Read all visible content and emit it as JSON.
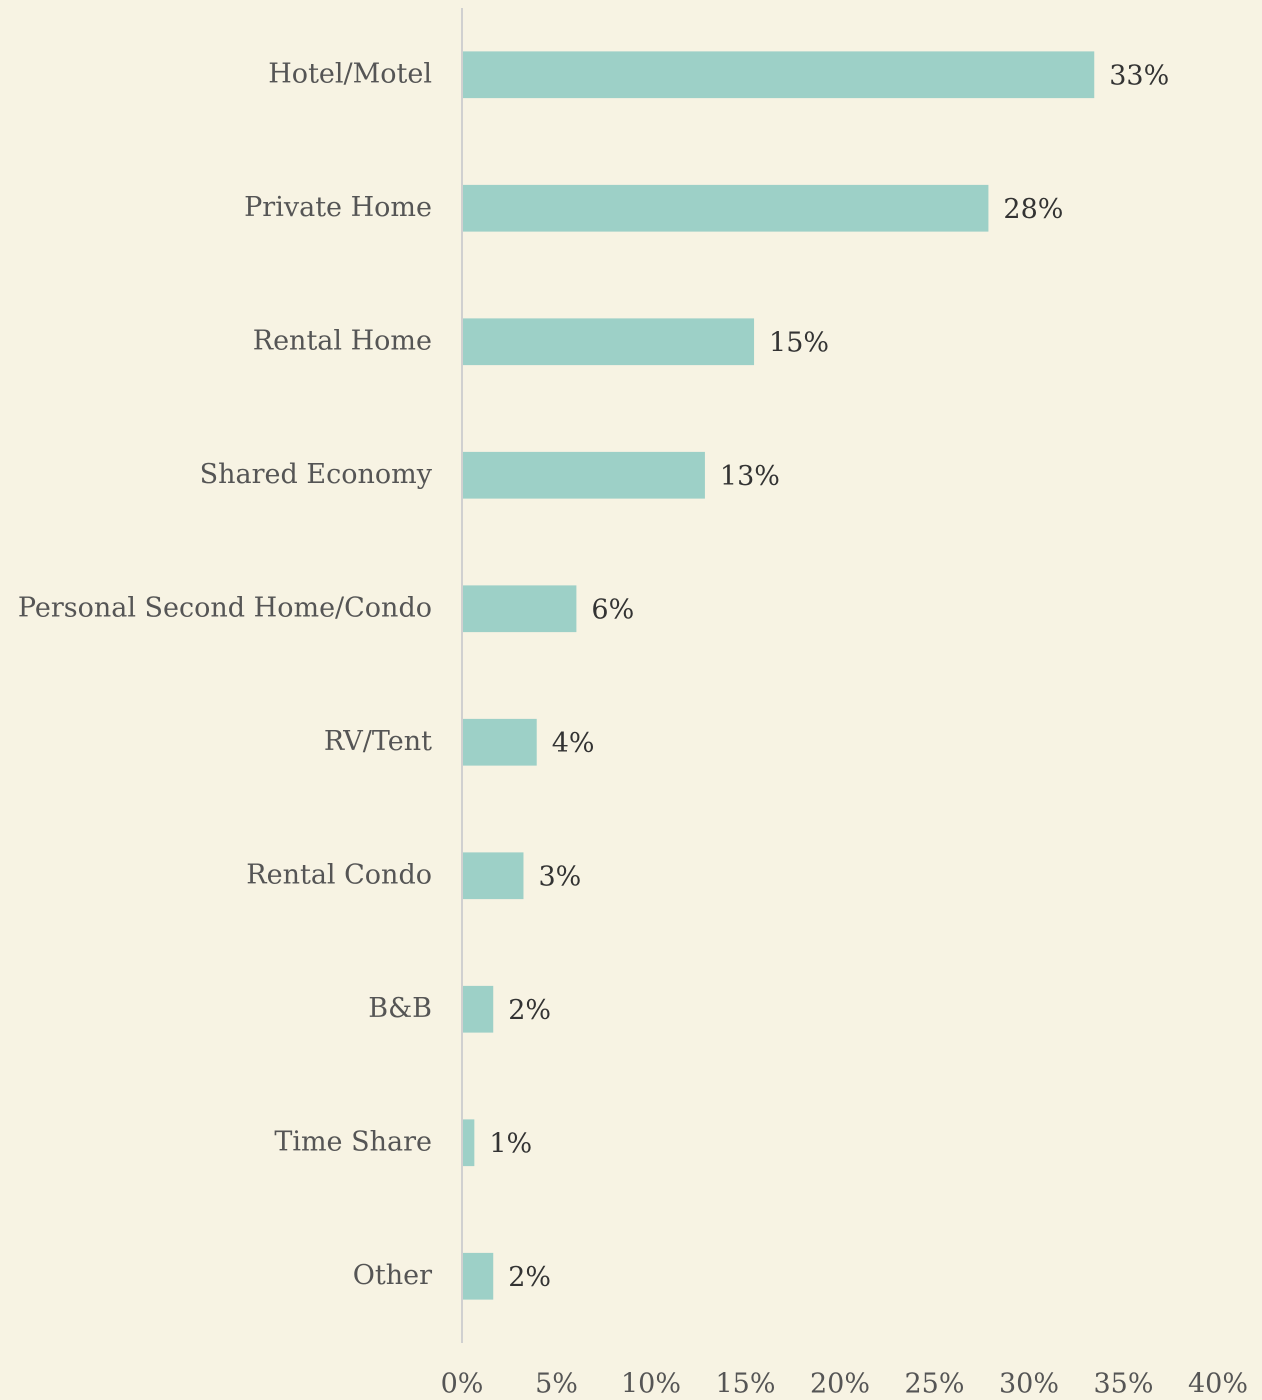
{
  "chart_data": {
    "type": "bar",
    "orientation": "horizontal",
    "categories": [
      "Hotel/Motel",
      "Private Home",
      "Rental Home",
      "Shared Economy",
      "Personal Second Home/Condo",
      "RV/Tent",
      "Rental Condo",
      "B&B",
      "Time Share",
      "Other"
    ],
    "values": [
      33.4,
      27.8,
      15.4,
      12.8,
      6.0,
      3.9,
      3.2,
      1.6,
      0.6,
      1.6
    ],
    "value_labels": [
      "33%",
      "28%",
      "15%",
      "13%",
      "6%",
      "4%",
      "3%",
      "2%",
      "1%",
      "2%"
    ],
    "color": "#9dd0c7",
    "xlim": [
      0,
      40
    ],
    "xticks": [
      {
        "value": 0,
        "label": "0%"
      },
      {
        "value": 5,
        "label": "5%"
      },
      {
        "value": 10,
        "label": "10%"
      },
      {
        "value": 15,
        "label": "15%"
      },
      {
        "value": 20,
        "label": "20%"
      },
      {
        "value": 25,
        "label": "25%"
      },
      {
        "value": 30,
        "label": "30%"
      },
      {
        "value": 35,
        "label": "35%"
      },
      {
        "value": 40,
        "label": "40%"
      }
    ],
    "grid": false
  }
}
